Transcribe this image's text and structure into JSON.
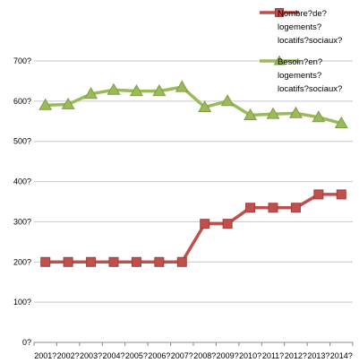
{
  "chart_data": {
    "type": "line",
    "title": "",
    "xlabel": "",
    "ylabel": "",
    "categories": [
      "2001?",
      "2002?",
      "2003?",
      "2004?",
      "2005?",
      "2006?",
      "2007?",
      "2008?",
      "2009?",
      "2010?",
      "2011?",
      "2012?",
      "2013?",
      "2014?"
    ],
    "ylim": [
      0,
      700
    ],
    "yticks": [
      0,
      100,
      200,
      300,
      400,
      500,
      600,
      700
    ],
    "ytick_labels": [
      "0?",
      "100?",
      "200?",
      "300?",
      "400?",
      "500?",
      "600?",
      "700?"
    ],
    "grid": true,
    "legend_position": "top-right",
    "series": [
      {
        "name": "Nombre?de? logements? locatifs?sociaux?",
        "legend_lines": [
          "Nombre?de?",
          "logements?",
          "locatifs?sociaux?"
        ],
        "color": "#C0504D",
        "marker": "square",
        "values": [
          200,
          200,
          200,
          200,
          200,
          200,
          200,
          295,
          295,
          335,
          335,
          335,
          368,
          368
        ]
      },
      {
        "name": "Besoin?en? logements? locatifs?sociaux?",
        "legend_lines": [
          "Besoin?en?",
          "logements?",
          "locatifs?sociaux?"
        ],
        "color": "#9BBB59",
        "marker": "triangle",
        "values": [
          590,
          592,
          618,
          628,
          625,
          625,
          635,
          585,
          600,
          565,
          568,
          570,
          560,
          545
        ]
      }
    ]
  }
}
